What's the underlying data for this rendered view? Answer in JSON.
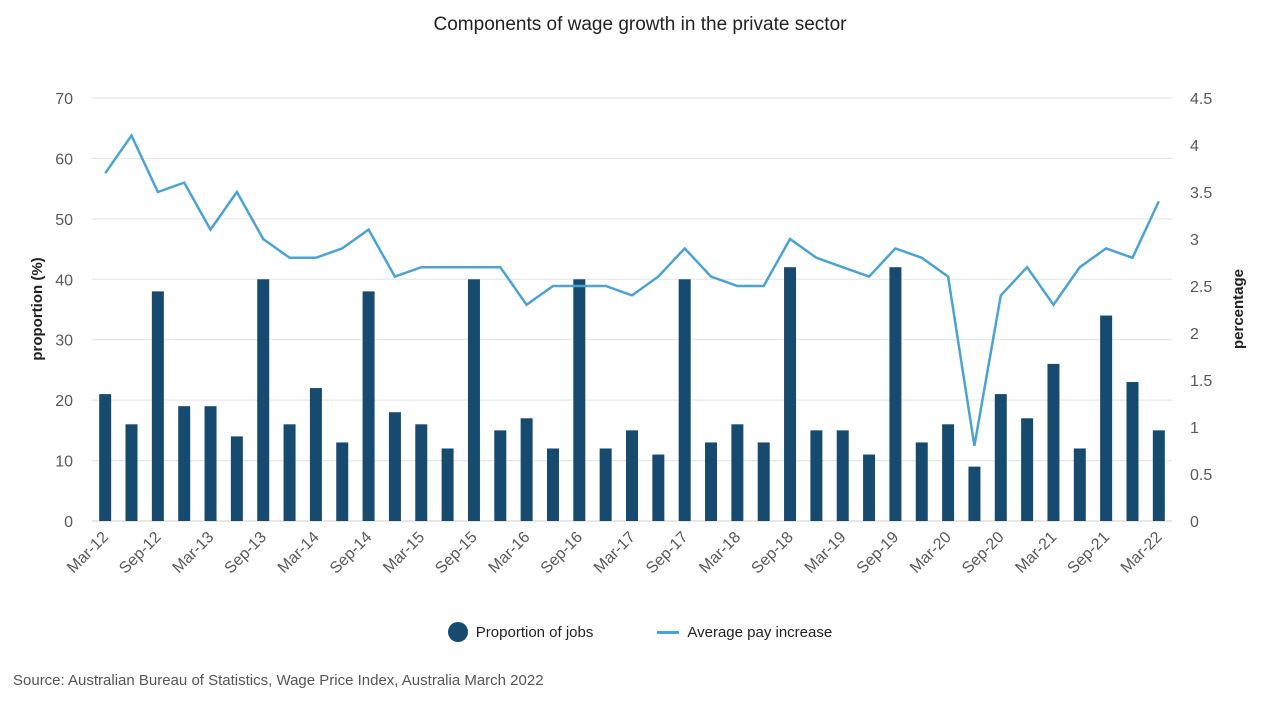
{
  "chart_data": {
    "type": "bar",
    "title": "Components of wage growth in the private sector",
    "ylabel": "proportion (%)",
    "y2label": "percentage",
    "ylim": [
      0,
      70
    ],
    "y2lim": [
      0,
      4.5
    ],
    "yticks": [
      0,
      10,
      20,
      30,
      40,
      50,
      60,
      70
    ],
    "y2ticks": [
      "0",
      "0.5",
      "1",
      "1.5",
      "2",
      "2.5",
      "3",
      "3.5",
      "4",
      "4.5"
    ],
    "grid": true,
    "legend_position": "bottom",
    "categories": [
      "Mar-12",
      "Jun-12",
      "Sep-12",
      "Dec-12",
      "Mar-13",
      "Jun-13",
      "Sep-13",
      "Dec-13",
      "Mar-14",
      "Jun-14",
      "Sep-14",
      "Dec-14",
      "Mar-15",
      "Jun-15",
      "Sep-15",
      "Dec-15",
      "Mar-16",
      "Jun-16",
      "Sep-16",
      "Dec-16",
      "Mar-17",
      "Jun-17",
      "Sep-17",
      "Dec-17",
      "Mar-18",
      "Jun-18",
      "Sep-18",
      "Dec-18",
      "Mar-19",
      "Jun-19",
      "Sep-19",
      "Dec-19",
      "Mar-20",
      "Jun-20",
      "Sep-20",
      "Dec-20",
      "Mar-21",
      "Jun-21",
      "Sep-21",
      "Dec-21",
      "Mar-22"
    ],
    "tick_labels": [
      "Mar-12",
      "Sep-12",
      "Mar-13",
      "Sep-13",
      "Mar-14",
      "Sep-14",
      "Mar-15",
      "Sep-15",
      "Mar-16",
      "Sep-16",
      "Mar-17",
      "Sep-17",
      "Mar-18",
      "Sep-18",
      "Mar-19",
      "Sep-19",
      "Mar-20",
      "Sep-20",
      "Mar-21",
      "Sep-21",
      "Mar-22"
    ],
    "series": [
      {
        "name": "Proportion of jobs",
        "type": "bar",
        "axis": "left",
        "color": "#164a6f",
        "values": [
          21,
          16,
          38,
          19,
          19,
          14,
          40,
          16,
          22,
          13,
          38,
          18,
          16,
          12,
          40,
          15,
          17,
          12,
          40,
          12,
          15,
          11,
          40,
          13,
          16,
          13,
          42,
          15,
          15,
          11,
          42,
          13,
          16,
          9,
          21,
          17,
          26,
          12,
          34,
          23,
          15
        ]
      },
      {
        "name": "Average pay increase",
        "type": "line",
        "axis": "right",
        "color": "#4aa3d3",
        "values": [
          3.7,
          4.1,
          3.5,
          3.6,
          3.1,
          3.5,
          3.0,
          2.8,
          2.8,
          2.9,
          3.1,
          2.6,
          2.7,
          2.7,
          2.7,
          2.7,
          2.3,
          2.5,
          2.5,
          2.5,
          2.4,
          2.6,
          2.9,
          2.6,
          2.5,
          2.5,
          3.0,
          2.8,
          2.7,
          2.6,
          2.9,
          2.8,
          2.6,
          0.8,
          2.4,
          2.7,
          2.3,
          2.7,
          2.9,
          2.8,
          3.4
        ]
      }
    ]
  },
  "source": "Source: Australian Bureau of Statistics, Wage Price Index, Australia March 2022"
}
